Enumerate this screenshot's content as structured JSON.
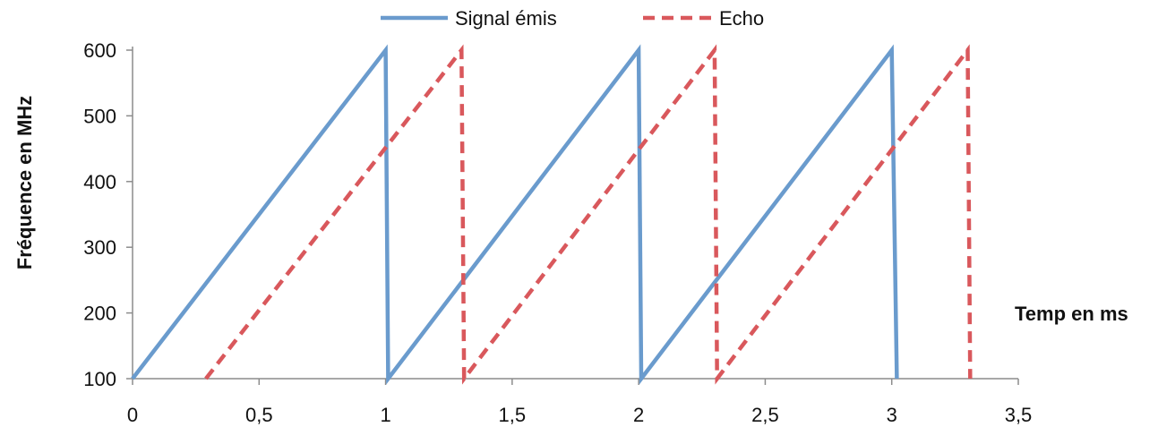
{
  "chart_data": {
    "type": "line",
    "title": "",
    "xlabel": "Temp en ms",
    "ylabel": "Fréquence en MHz",
    "xlim": [
      0,
      3.5
    ],
    "ylim": [
      100,
      600
    ],
    "x_ticks": [
      0,
      0.5,
      1,
      1.5,
      2,
      2.5,
      3,
      3.5
    ],
    "x_tick_labels": [
      "0",
      "0,5",
      "1",
      "1,5",
      "2",
      "2,5",
      "3",
      "3,5"
    ],
    "y_ticks": [
      100,
      200,
      300,
      400,
      500,
      600
    ],
    "y_tick_labels": [
      "100",
      "200",
      "300",
      "400",
      "500",
      "600"
    ],
    "grid": false,
    "legend_position": "top",
    "series": [
      {
        "name": "Signal émis",
        "color": "#6a9bcd",
        "line_style": "solid",
        "points": [
          [
            0,
            100
          ],
          [
            1,
            600
          ],
          [
            1.01,
            100
          ],
          [
            2,
            600
          ],
          [
            2.01,
            100
          ],
          [
            3,
            600
          ],
          [
            3.02,
            100
          ]
        ]
      },
      {
        "name": "Echo",
        "color": "#d9585c",
        "line_style": "dashed",
        "points": [
          [
            0.29,
            100
          ],
          [
            1.3,
            600
          ],
          [
            1.31,
            100
          ],
          [
            2.3,
            600
          ],
          [
            2.31,
            100
          ],
          [
            3.3,
            600
          ],
          [
            3.31,
            100
          ]
        ]
      }
    ]
  }
}
